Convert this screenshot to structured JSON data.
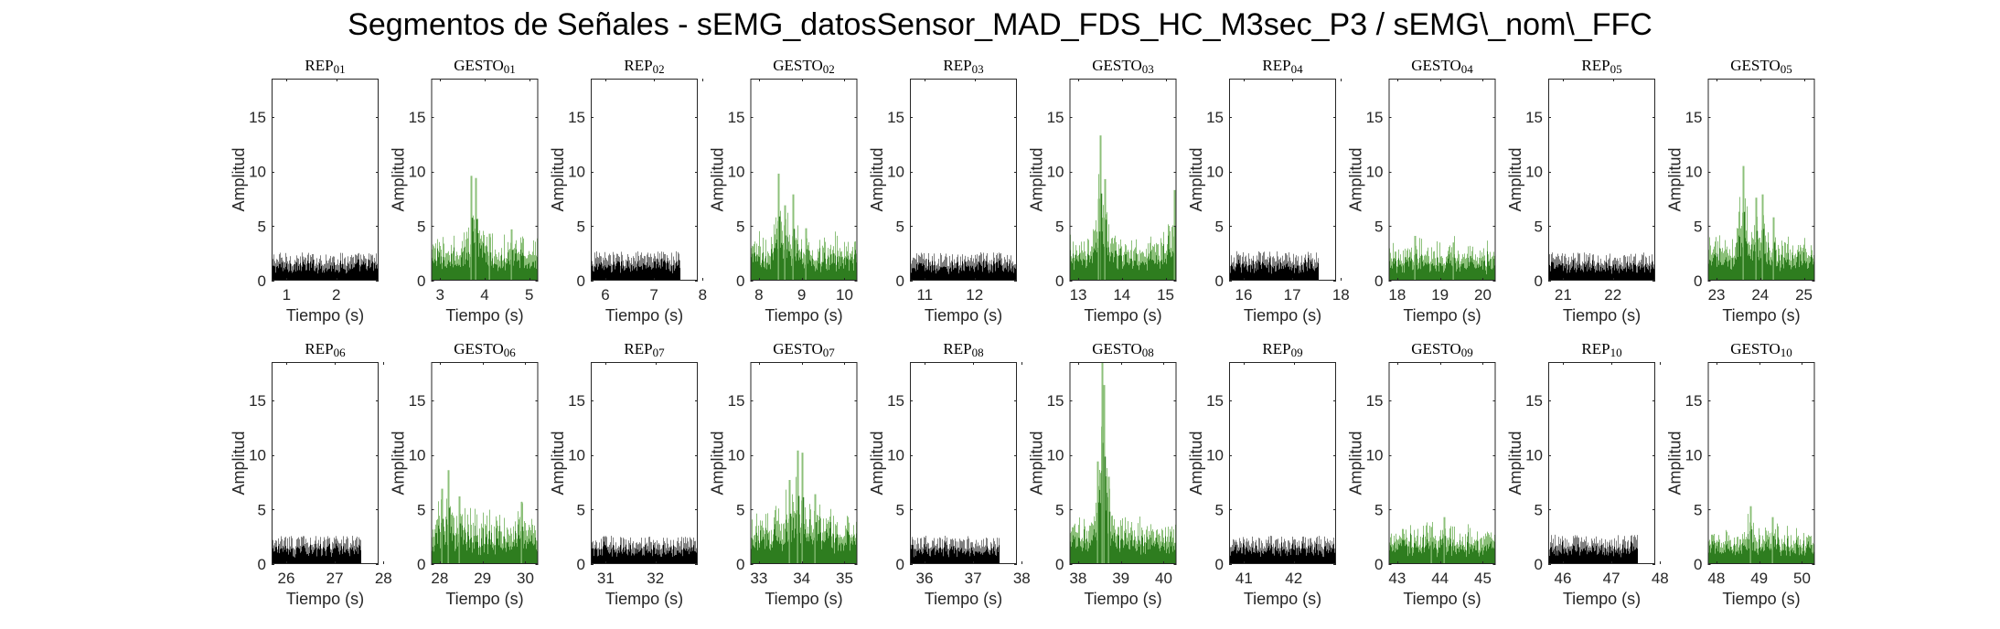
{
  "figure_title": "Segmentos de Señales - sEMG_datosSensor_MAD_FDS_HC_M3sec_P3 / sEMG\\_nom\\_FFC",
  "colors": {
    "rep_dark": "#000000",
    "rep_light": "#7f7f7f",
    "gesto_dark": "#2e7d1f",
    "gesto_light": "#8cc07a",
    "axes": "#262626"
  },
  "chart_data": [
    {
      "type": "bar",
      "title": "REP_01",
      "xlabel": "Tiempo (s)",
      "ylabel": "Amplitud",
      "xlim": [
        0.7,
        2.85
      ],
      "ylim": [
        0,
        18.5
      ],
      "xticks": [
        1,
        2
      ],
      "yticks": [
        0,
        5,
        10,
        15
      ],
      "color": "black",
      "signal": {
        "baseline": 1.3,
        "noise": 1.3,
        "peaks": []
      }
    },
    {
      "type": "bar",
      "title": "GESTO_01",
      "xlabel": "Tiempo (s)",
      "ylabel": "Amplitud",
      "xlim": [
        2.8,
        5.2
      ],
      "ylim": [
        0,
        18.5
      ],
      "xticks": [
        3,
        4,
        5
      ],
      "yticks": [
        0,
        5,
        10,
        15
      ],
      "color": "green",
      "signal": {
        "baseline": 1.8,
        "noise": 1.6,
        "peaks": [
          {
            "x": 3.7,
            "y": 9.6
          },
          {
            "x": 3.8,
            "y": 9.4
          },
          {
            "x": 4.1,
            "y": 4.3
          },
          {
            "x": 4.6,
            "y": 4.7
          }
        ]
      }
    },
    {
      "type": "bar",
      "title": "REP_02",
      "xlabel": "Tiempo (s)",
      "ylabel": "Amplitud",
      "xlim": [
        5.7,
        7.9
      ],
      "ylim": [
        0,
        18.5
      ],
      "xticks": [
        6,
        7,
        8
      ],
      "yticks": [
        0,
        5,
        10,
        15
      ],
      "color": "black",
      "signal": {
        "baseline": 1.3,
        "noise": 1.4,
        "peaks": []
      },
      "data_end": 7.55
    },
    {
      "type": "bar",
      "title": "GESTO_02",
      "xlabel": "Tiempo (s)",
      "ylabel": "Amplitud",
      "xlim": [
        7.8,
        10.3
      ],
      "ylim": [
        0,
        18.5
      ],
      "xticks": [
        8,
        9,
        10
      ],
      "yticks": [
        0,
        5,
        10,
        15
      ],
      "color": "green",
      "signal": {
        "baseline": 1.9,
        "noise": 1.8,
        "peaks": [
          {
            "x": 8.45,
            "y": 9.8
          },
          {
            "x": 8.6,
            "y": 6.9
          },
          {
            "x": 8.8,
            "y": 7.9
          },
          {
            "x": 9.1,
            "y": 4.8
          }
        ]
      }
    },
    {
      "type": "bar",
      "title": "REP_03",
      "xlabel": "Tiempo (s)",
      "ylabel": "Amplitud",
      "xlim": [
        10.7,
        12.85
      ],
      "ylim": [
        0,
        18.5
      ],
      "xticks": [
        11,
        12
      ],
      "yticks": [
        0,
        5,
        10,
        15
      ],
      "color": "black",
      "signal": {
        "baseline": 1.3,
        "noise": 1.3,
        "peaks": []
      }
    },
    {
      "type": "bar",
      "title": "GESTO_03",
      "xlabel": "Tiempo (s)",
      "ylabel": "Amplitud",
      "xlim": [
        12.8,
        15.25
      ],
      "ylim": [
        0,
        18.5
      ],
      "xticks": [
        13,
        14,
        15
      ],
      "yticks": [
        0,
        5,
        10,
        15
      ],
      "color": "green",
      "signal": {
        "baseline": 1.9,
        "noise": 1.7,
        "peaks": [
          {
            "x": 13.5,
            "y": 13.3
          },
          {
            "x": 13.6,
            "y": 9.3
          },
          {
            "x": 13.45,
            "y": 7.5
          },
          {
            "x": 15.2,
            "y": 8.3
          }
        ]
      }
    },
    {
      "type": "bar",
      "title": "REP_04",
      "xlabel": "Tiempo (s)",
      "ylabel": "Amplitud",
      "xlim": [
        15.7,
        17.9
      ],
      "ylim": [
        0,
        18.5
      ],
      "xticks": [
        16,
        17,
        18
      ],
      "yticks": [
        0,
        5,
        10,
        15
      ],
      "color": "black",
      "signal": {
        "baseline": 1.3,
        "noise": 1.4,
        "peaks": []
      },
      "data_end": 17.55
    },
    {
      "type": "bar",
      "title": "GESTO_04",
      "xlabel": "Tiempo (s)",
      "ylabel": "Amplitud",
      "xlim": [
        17.8,
        20.3
      ],
      "ylim": [
        0,
        18.5
      ],
      "xticks": [
        18,
        19,
        20
      ],
      "yticks": [
        0,
        5,
        10,
        15
      ],
      "color": "green",
      "signal": {
        "baseline": 1.6,
        "noise": 1.4,
        "peaks": [
          {
            "x": 18.4,
            "y": 4.1
          },
          {
            "x": 19.3,
            "y": 3.5
          }
        ]
      }
    },
    {
      "type": "bar",
      "title": "REP_05",
      "xlabel": "Tiempo (s)",
      "ylabel": "Amplitud",
      "xlim": [
        20.7,
        22.85
      ],
      "ylim": [
        0,
        18.5
      ],
      "xticks": [
        21,
        22
      ],
      "yticks": [
        0,
        5,
        10,
        15
      ],
      "color": "black",
      "signal": {
        "baseline": 1.3,
        "noise": 1.3,
        "peaks": []
      }
    },
    {
      "type": "bar",
      "title": "GESTO_05",
      "xlabel": "Tiempo (s)",
      "ylabel": "Amplitud",
      "xlim": [
        22.8,
        25.25
      ],
      "ylim": [
        0,
        18.5
      ],
      "xticks": [
        23,
        24,
        25
      ],
      "yticks": [
        0,
        5,
        10,
        15
      ],
      "color": "green",
      "signal": {
        "baseline": 1.9,
        "noise": 1.7,
        "peaks": [
          {
            "x": 23.6,
            "y": 10.5
          },
          {
            "x": 23.9,
            "y": 7.6
          },
          {
            "x": 24.05,
            "y": 7.9
          },
          {
            "x": 24.3,
            "y": 5.8
          }
        ]
      }
    },
    {
      "type": "bar",
      "title": "REP_06",
      "xlabel": "Tiempo (s)",
      "ylabel": "Amplitud",
      "xlim": [
        25.7,
        27.9
      ],
      "ylim": [
        0,
        18.5
      ],
      "xticks": [
        26,
        27,
        28
      ],
      "yticks": [
        0,
        5,
        10,
        15
      ],
      "color": "black",
      "signal": {
        "baseline": 1.3,
        "noise": 1.3,
        "peaks": []
      },
      "data_end": 27.55
    },
    {
      "type": "bar",
      "title": "GESTO_06",
      "xlabel": "Tiempo (s)",
      "ylabel": "Amplitud",
      "xlim": [
        27.8,
        30.3
      ],
      "ylim": [
        0,
        18.5
      ],
      "xticks": [
        28,
        29,
        30
      ],
      "yticks": [
        0,
        5,
        10,
        15
      ],
      "color": "green",
      "signal": {
        "baseline": 2.0,
        "noise": 2.2,
        "peaks": [
          {
            "x": 28.2,
            "y": 8.6
          },
          {
            "x": 28.05,
            "y": 6.9
          },
          {
            "x": 28.45,
            "y": 6.2
          },
          {
            "x": 29.9,
            "y": 5.7
          }
        ]
      }
    },
    {
      "type": "bar",
      "title": "REP_07",
      "xlabel": "Tiempo (s)",
      "ylabel": "Amplitud",
      "xlim": [
        30.7,
        32.85
      ],
      "ylim": [
        0,
        18.5
      ],
      "xticks": [
        31,
        32
      ],
      "yticks": [
        0,
        5,
        10,
        15
      ],
      "color": "black",
      "signal": {
        "baseline": 1.3,
        "noise": 1.3,
        "peaks": []
      }
    },
    {
      "type": "bar",
      "title": "GESTO_07",
      "xlabel": "Tiempo (s)",
      "ylabel": "Amplitud",
      "xlim": [
        32.8,
        35.3
      ],
      "ylim": [
        0,
        18.5
      ],
      "xticks": [
        33,
        34,
        35
      ],
      "yticks": [
        0,
        5,
        10,
        15
      ],
      "color": "green",
      "signal": {
        "baseline": 2.2,
        "noise": 2.0,
        "peaks": [
          {
            "x": 33.9,
            "y": 10.4
          },
          {
            "x": 34.0,
            "y": 10.2
          },
          {
            "x": 33.7,
            "y": 7.7
          },
          {
            "x": 34.3,
            "y": 6.4
          }
        ]
      }
    },
    {
      "type": "bar",
      "title": "REP_08",
      "xlabel": "Tiempo (s)",
      "ylabel": "Amplitud",
      "xlim": [
        35.7,
        37.9
      ],
      "ylim": [
        0,
        18.5
      ],
      "xticks": [
        36,
        37,
        38
      ],
      "yticks": [
        0,
        5,
        10,
        15
      ],
      "color": "black",
      "signal": {
        "baseline": 1.3,
        "noise": 1.3,
        "peaks": []
      },
      "data_end": 37.55
    },
    {
      "type": "bar",
      "title": "GESTO_08",
      "xlabel": "Tiempo (s)",
      "ylabel": "Amplitud",
      "xlim": [
        37.8,
        40.3
      ],
      "ylim": [
        0,
        18.5
      ],
      "xticks": [
        38,
        39,
        40
      ],
      "yticks": [
        0,
        5,
        10,
        15
      ],
      "color": "green",
      "signal": {
        "baseline": 1.9,
        "noise": 1.8,
        "peaks": [
          {
            "x": 38.55,
            "y": 18.5
          },
          {
            "x": 38.6,
            "y": 16.4
          },
          {
            "x": 38.45,
            "y": 9.4
          },
          {
            "x": 38.7,
            "y": 8.0
          }
        ]
      }
    },
    {
      "type": "bar",
      "title": "REP_09",
      "xlabel": "Tiempo (s)",
      "ylabel": "Amplitud",
      "xlim": [
        40.7,
        42.85
      ],
      "ylim": [
        0,
        18.5
      ],
      "xticks": [
        41,
        42
      ],
      "yticks": [
        0,
        5,
        10,
        15
      ],
      "color": "black",
      "signal": {
        "baseline": 1.3,
        "noise": 1.3,
        "peaks": []
      }
    },
    {
      "type": "bar",
      "title": "GESTO_09",
      "xlabel": "Tiempo (s)",
      "ylabel": "Amplitud",
      "xlim": [
        42.8,
        45.3
      ],
      "ylim": [
        0,
        18.5
      ],
      "xticks": [
        43,
        44,
        45
      ],
      "yticks": [
        0,
        5,
        10,
        15
      ],
      "color": "green",
      "signal": {
        "baseline": 1.6,
        "noise": 1.4,
        "peaks": [
          {
            "x": 44.1,
            "y": 4.3
          },
          {
            "x": 43.8,
            "y": 3.4
          }
        ]
      }
    },
    {
      "type": "bar",
      "title": "REP_10",
      "xlabel": "Tiempo (s)",
      "ylabel": "Amplitud",
      "xlim": [
        45.7,
        47.9
      ],
      "ylim": [
        0,
        18.5
      ],
      "xticks": [
        46,
        47,
        48
      ],
      "yticks": [
        0,
        5,
        10,
        15
      ],
      "color": "black",
      "signal": {
        "baseline": 1.3,
        "noise": 1.4,
        "peaks": []
      },
      "data_end": 47.55
    },
    {
      "type": "bar",
      "title": "GESTO_10",
      "xlabel": "Tiempo (s)",
      "ylabel": "Amplitud",
      "xlim": [
        47.8,
        50.3
      ],
      "ylim": [
        0,
        18.5
      ],
      "xticks": [
        48,
        49,
        50
      ],
      "yticks": [
        0,
        5,
        10,
        15
      ],
      "color": "green",
      "signal": {
        "baseline": 1.6,
        "noise": 1.4,
        "peaks": [
          {
            "x": 48.8,
            "y": 5.3
          },
          {
            "x": 49.3,
            "y": 4.3
          }
        ]
      }
    }
  ]
}
